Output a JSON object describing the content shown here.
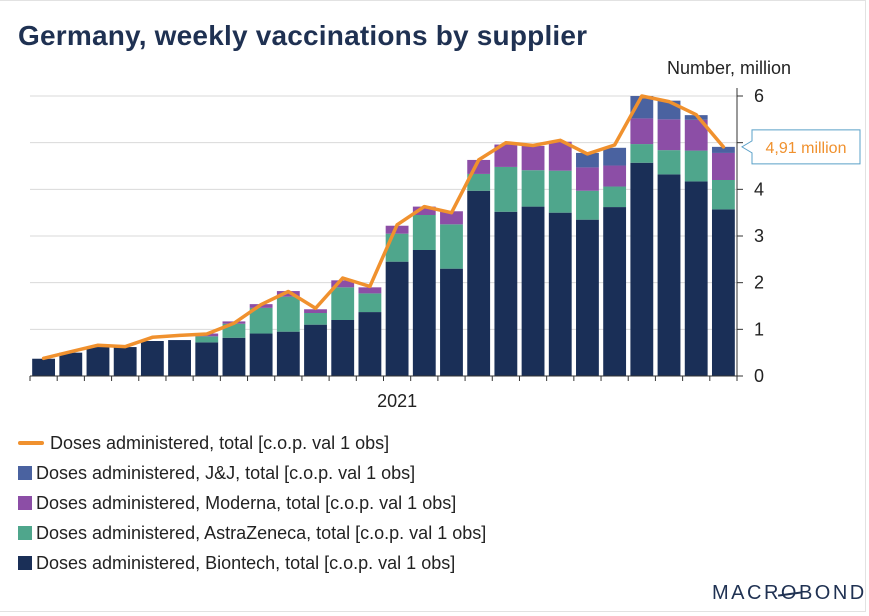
{
  "title": "Germany, weekly vaccinations by supplier",
  "unit_label": "Number, million",
  "callout": "4,91 million",
  "logo": {
    "before": "MACR",
    "o": "O",
    "after": "BOND"
  },
  "legend": [
    {
      "label": "Doses administered, total [c.o.p. val 1 obs]",
      "color": "#f0912e",
      "kind": "line"
    },
    {
      "label": "Doses administered, J&J, total [c.o.p. val 1 obs]",
      "color": "#4a62a0",
      "kind": "box"
    },
    {
      "label": "Doses administered, Moderna, total [c.o.p. val 1 obs]",
      "color": "#8c4ea6",
      "kind": "box"
    },
    {
      "label": "Doses administered, AstraZeneca, total [c.o.p. val 1 obs]",
      "color": "#4fa68c",
      "kind": "box"
    },
    {
      "label": "Doses administered, Biontech, total [c.o.p. val 1 obs]",
      "color": "#1a2f57",
      "kind": "box"
    }
  ],
  "chart_data": {
    "type": "bar",
    "stacked": true,
    "title": "Germany, weekly vaccinations by supplier",
    "ylabel": "Number, million",
    "ylim": [
      0,
      6.2
    ],
    "yticks": [
      0,
      1,
      2,
      3,
      4,
      5,
      6
    ],
    "x_tick_labels": [
      {
        "label": "2021",
        "index": 13.5
      }
    ],
    "grid": true,
    "legend_position": "bottom",
    "y_axis_side": "right",
    "series": [
      {
        "name": "Doses administered, Biontech, total [c.o.p. val 1 obs]",
        "color": "#1a2f57",
        "values": [
          0.37,
          0.5,
          0.62,
          0.62,
          0.75,
          0.77,
          0.72,
          0.82,
          0.91,
          0.95,
          1.1,
          1.2,
          1.37,
          2.45,
          2.7,
          2.3,
          3.97,
          3.52,
          3.63,
          3.5,
          3.35,
          3.62,
          4.57,
          4.32,
          4.17,
          3.57
        ]
      },
      {
        "name": "Doses administered, AstraZeneca, total [c.o.p. val 1 obs]",
        "color": "#4fa68c",
        "values": [
          0.0,
          0.0,
          0.0,
          0.0,
          0.0,
          0.0,
          0.13,
          0.3,
          0.55,
          0.75,
          0.25,
          0.7,
          0.4,
          0.6,
          0.75,
          0.95,
          0.36,
          0.96,
          0.78,
          0.9,
          0.62,
          0.44,
          0.4,
          0.52,
          0.66,
          0.63
        ]
      },
      {
        "name": "Doses administered, Moderna, total [c.o.p. val 1 obs]",
        "color": "#8c4ea6",
        "values": [
          0.0,
          0.0,
          0.0,
          0.0,
          0.0,
          0.0,
          0.06,
          0.05,
          0.08,
          0.12,
          0.08,
          0.15,
          0.13,
          0.17,
          0.18,
          0.28,
          0.3,
          0.48,
          0.52,
          0.62,
          0.5,
          0.45,
          0.55,
          0.66,
          0.66,
          0.58
        ]
      },
      {
        "name": "Doses administered, J&J, total [c.o.p. val 1 obs]",
        "color": "#4a62a0",
        "values": [
          0.0,
          0.0,
          0.0,
          0.0,
          0.0,
          0.0,
          0.0,
          0.0,
          0.0,
          0.0,
          0.0,
          0.0,
          0.0,
          0.0,
          0.0,
          0.0,
          0.0,
          0.0,
          0.0,
          0.0,
          0.31,
          0.38,
          0.48,
          0.4,
          0.1,
          0.13
        ]
      }
    ],
    "total_line": {
      "name": "Doses administered, total [c.o.p. val 1 obs]",
      "color": "#f0912e",
      "values": [
        0.38,
        0.52,
        0.66,
        0.63,
        0.83,
        0.87,
        0.9,
        1.13,
        1.53,
        1.81,
        1.45,
        2.1,
        1.92,
        3.24,
        3.63,
        3.5,
        4.63,
        5.0,
        4.94,
        5.05,
        4.76,
        4.95,
        6.0,
        5.88,
        5.6,
        4.91
      ]
    }
  }
}
